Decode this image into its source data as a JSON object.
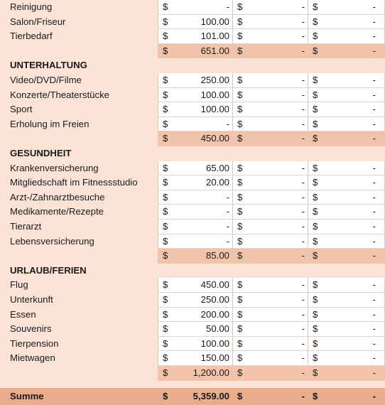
{
  "rows": [
    {
      "type": "item",
      "label": "Reinigung",
      "v1": "-",
      "v2": "-",
      "v3": "-"
    },
    {
      "type": "item",
      "label": "Salon/Friseur",
      "v1": "100.00",
      "v2": "-",
      "v3": "-"
    },
    {
      "type": "item",
      "label": "Tierbedarf",
      "v1": "101.00",
      "v2": "-",
      "v3": "-"
    },
    {
      "type": "subtotal",
      "label": "",
      "v1": "651.00",
      "v2": "-",
      "v3": "-"
    },
    {
      "type": "header",
      "label": "UNTERHALTUNG"
    },
    {
      "type": "item",
      "label": "Video/DVD/Filme",
      "v1": "250.00",
      "v2": "-",
      "v3": "-"
    },
    {
      "type": "item",
      "label": "Konzerte/Theaterstücke",
      "v1": "100.00",
      "v2": "-",
      "v3": "-"
    },
    {
      "type": "item",
      "label": "Sport",
      "v1": "100.00",
      "v2": "-",
      "v3": "-"
    },
    {
      "type": "item",
      "label": "Erholung im Freien",
      "v1": "-",
      "v2": "-",
      "v3": "-"
    },
    {
      "type": "subtotal",
      "label": "",
      "v1": "450.00",
      "v2": "-",
      "v3": "-"
    },
    {
      "type": "header",
      "label": "GESUNDHEIT"
    },
    {
      "type": "item",
      "label": "Krankenversicherung",
      "v1": "65.00",
      "v2": "-",
      "v3": "-"
    },
    {
      "type": "item",
      "label": "Mitgliedschaft im Fitnessstudio",
      "v1": "20.00",
      "v2": "-",
      "v3": "-"
    },
    {
      "type": "item",
      "label": "Arzt-/Zahnarztbesuche",
      "v1": "-",
      "v2": "-",
      "v3": "-"
    },
    {
      "type": "item",
      "label": "Medikamente/Rezepte",
      "v1": "-",
      "v2": "-",
      "v3": "-"
    },
    {
      "type": "item",
      "label": "Tierarzt",
      "v1": "-",
      "v2": "-",
      "v3": "-"
    },
    {
      "type": "item",
      "label": "Lebensversicherung",
      "v1": "-",
      "v2": "-",
      "v3": "-"
    },
    {
      "type": "subtotal",
      "label": "",
      "v1": "85.00",
      "v2": "-",
      "v3": "-"
    },
    {
      "type": "header",
      "label": "URLAUB/FERIEN"
    },
    {
      "type": "item",
      "label": "Flug",
      "v1": "450.00",
      "v2": "-",
      "v3": "-"
    },
    {
      "type": "item",
      "label": "Unterkunft",
      "v1": "250.00",
      "v2": "-",
      "v3": "-"
    },
    {
      "type": "item",
      "label": "Essen",
      "v1": "200.00",
      "v2": "-",
      "v3": "-"
    },
    {
      "type": "item",
      "label": "Souvenirs",
      "v1": "50.00",
      "v2": "-",
      "v3": "-"
    },
    {
      "type": "item",
      "label": "Tierpension",
      "v1": "100.00",
      "v2": "-",
      "v3": "-"
    },
    {
      "type": "item",
      "label": "Mietwagen",
      "v1": "150.00",
      "v2": "-",
      "v3": "-"
    },
    {
      "type": "subtotal",
      "label": "",
      "v1": "1,200.00",
      "v2": "-",
      "v3": "-"
    },
    {
      "type": "spacer",
      "label": ""
    },
    {
      "type": "total",
      "label": "Summe",
      "v1": "5,359.00",
      "v2": "-",
      "v3": "-"
    }
  ],
  "currency_symbol": "$",
  "colors": {
    "label_background": "#fbe3d8",
    "subtotal_fill": "#f1c3ab",
    "total_fill": "#e9ac8d"
  }
}
